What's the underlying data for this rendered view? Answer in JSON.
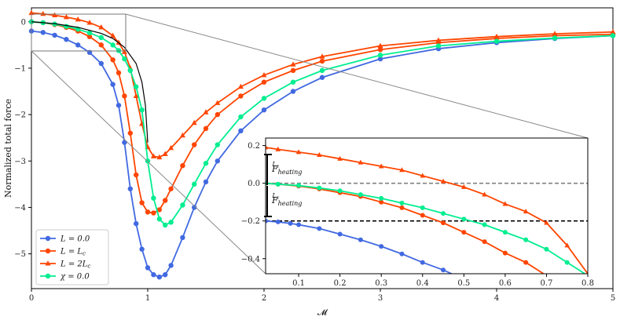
{
  "chart_data": [
    {
      "type": "line",
      "xlabel": "𝓜",
      "ylabel": "Normalized total force",
      "xlim": [
        0,
        5
      ],
      "ylim": [
        -5.75,
        0.3
      ],
      "x_ticks": [
        "0",
        "1",
        "2",
        "3",
        "4",
        "5"
      ],
      "y_ticks": [
        "0",
        "−1",
        "−2",
        "−3",
        "−4",
        "−5"
      ],
      "grid": false,
      "legend_position": "bottom-left",
      "series": [
        {
          "name": "L = 0.0",
          "color": "#4169e1",
          "marker": "circle",
          "x": [
            0,
            0.1,
            0.2,
            0.3,
            0.4,
            0.5,
            0.6,
            0.7,
            0.75,
            0.8,
            0.85,
            0.9,
            0.95,
            1.0,
            1.05,
            1.1,
            1.15,
            1.2,
            1.3,
            1.4,
            1.5,
            1.6,
            1.8,
            2.0,
            2.25,
            2.5,
            3.0,
            3.5,
            4.0,
            4.5,
            5.0
          ],
          "y": [
            -0.2,
            -0.23,
            -0.29,
            -0.38,
            -0.5,
            -0.66,
            -0.9,
            -1.35,
            -1.8,
            -2.6,
            -3.6,
            -4.35,
            -4.9,
            -5.3,
            -5.45,
            -5.5,
            -5.45,
            -5.25,
            -4.65,
            -4.0,
            -3.45,
            -3.0,
            -2.35,
            -1.9,
            -1.5,
            -1.2,
            -0.8,
            -0.58,
            -0.45,
            -0.36,
            -0.3
          ]
        },
        {
          "name": "L = L_c",
          "color": "#ff4500",
          "marker": "circle",
          "x": [
            0,
            0.1,
            0.2,
            0.3,
            0.4,
            0.5,
            0.6,
            0.7,
            0.75,
            0.8,
            0.85,
            0.9,
            0.95,
            1.0,
            1.05,
            1.1,
            1.15,
            1.2,
            1.3,
            1.4,
            1.5,
            1.6,
            1.8,
            2.0,
            2.25,
            2.5,
            3.0,
            3.5,
            4.0,
            4.5,
            5.0
          ],
          "y": [
            0.0,
            -0.02,
            -0.06,
            -0.12,
            -0.2,
            -0.32,
            -0.5,
            -0.82,
            -1.1,
            -1.6,
            -2.4,
            -3.3,
            -3.9,
            -4.1,
            -4.12,
            -4.05,
            -3.85,
            -3.6,
            -3.1,
            -2.65,
            -2.3,
            -2.0,
            -1.6,
            -1.3,
            -1.05,
            -0.85,
            -0.6,
            -0.45,
            -0.36,
            -0.3,
            -0.27
          ]
        },
        {
          "name": "L = 2L_c",
          "color": "#ff4500",
          "marker": "triangle",
          "x": [
            0,
            0.1,
            0.2,
            0.3,
            0.4,
            0.5,
            0.6,
            0.7,
            0.75,
            0.8,
            0.85,
            0.9,
            0.95,
            1.0,
            1.05,
            1.1,
            1.15,
            1.2,
            1.3,
            1.4,
            1.5,
            1.6,
            1.8,
            2.0,
            2.25,
            2.5,
            3.0,
            3.5,
            4.0,
            4.5,
            5.0
          ],
          "y": [
            0.19,
            0.17,
            0.14,
            0.1,
            0.05,
            -0.02,
            -0.12,
            -0.3,
            -0.45,
            -0.65,
            -1.0,
            -1.6,
            -2.2,
            -2.7,
            -2.9,
            -2.92,
            -2.85,
            -2.72,
            -2.45,
            -2.18,
            -1.95,
            -1.75,
            -1.4,
            -1.15,
            -0.92,
            -0.75,
            -0.52,
            -0.4,
            -0.32,
            -0.26,
            -0.22
          ]
        },
        {
          "name": "χ = 0.0",
          "color": "#00ee90",
          "marker": "circle",
          "x": [
            0,
            0.1,
            0.2,
            0.3,
            0.4,
            0.5,
            0.6,
            0.7,
            0.75,
            0.8,
            0.85,
            0.9,
            0.95,
            1.0,
            1.05,
            1.1,
            1.15,
            1.2,
            1.3,
            1.4,
            1.5,
            1.6,
            1.8,
            2.0,
            2.25,
            2.5,
            3.0,
            3.5,
            4.0,
            4.5,
            5.0
          ],
          "y": [
            0.0,
            -0.02,
            -0.05,
            -0.1,
            -0.16,
            -0.24,
            -0.34,
            -0.5,
            -0.62,
            -0.8,
            -1.05,
            -1.4,
            -1.9,
            -3.0,
            -3.8,
            -4.25,
            -4.38,
            -4.32,
            -3.95,
            -3.5,
            -3.05,
            -2.65,
            -2.05,
            -1.65,
            -1.3,
            -1.05,
            -0.72,
            -0.52,
            -0.42,
            -0.35,
            -0.3
          ]
        },
        {
          "name": "",
          "color": "#000000",
          "marker": "none",
          "x": [
            0,
            0.2,
            0.4,
            0.6,
            0.7,
            0.8,
            0.9,
            0.95,
            0.98,
            1.0
          ],
          "y": [
            0.0,
            -0.04,
            -0.12,
            -0.25,
            -0.36,
            -0.55,
            -0.9,
            -1.3,
            -1.8,
            -2.6
          ]
        }
      ]
    },
    {
      "type": "line",
      "xlim": [
        0.02,
        0.8
      ],
      "ylim": [
        -0.48,
        0.24
      ],
      "x_ticks": [
        "0.1",
        "0.2",
        "0.3",
        "0.4",
        "0.5",
        "0.6",
        "0.7",
        "0.8"
      ],
      "y_ticks": [
        "0.2",
        "0.0",
        "−0.2",
        "−0.4"
      ],
      "hlines": [
        {
          "y": 0.0,
          "color": "#808080",
          "style": "dashed"
        },
        {
          "y": -0.2,
          "color": "#000000",
          "style": "dashed"
        }
      ],
      "annotations": [
        {
          "text": "F_heating^(L_c)",
          "position": "upper"
        },
        {
          "text": "F_heating^(L_c)",
          "position": "lower"
        }
      ],
      "series": [
        {
          "name": "L = 0.0",
          "color": "#4169e1",
          "marker": "circle",
          "x": [
            0.02,
            0.05,
            0.08,
            0.1,
            0.15,
            0.2,
            0.25,
            0.3,
            0.35,
            0.4,
            0.45,
            0.48
          ],
          "y": [
            -0.2,
            -0.205,
            -0.213,
            -0.22,
            -0.24,
            -0.27,
            -0.3,
            -0.335,
            -0.375,
            -0.42,
            -0.46,
            -0.49
          ]
        },
        {
          "name": "L = L_c",
          "color": "#ff4500",
          "marker": "circle",
          "x": [
            0.02,
            0.05,
            0.1,
            0.15,
            0.2,
            0.25,
            0.3,
            0.35,
            0.4,
            0.45,
            0.5,
            0.55,
            0.6,
            0.65,
            0.7
          ],
          "y": [
            0.0,
            -0.005,
            -0.015,
            -0.03,
            -0.05,
            -0.07,
            -0.1,
            -0.13,
            -0.17,
            -0.21,
            -0.26,
            -0.31,
            -0.37,
            -0.42,
            -0.49
          ]
        },
        {
          "name": "L = 2L_c",
          "color": "#ff4500",
          "marker": "triangle",
          "x": [
            0.02,
            0.05,
            0.1,
            0.15,
            0.2,
            0.25,
            0.3,
            0.35,
            0.4,
            0.45,
            0.5,
            0.55,
            0.6,
            0.65,
            0.7,
            0.75,
            0.8
          ],
          "y": [
            0.19,
            0.18,
            0.165,
            0.15,
            0.13,
            0.11,
            0.09,
            0.07,
            0.04,
            0.01,
            -0.02,
            -0.06,
            -0.11,
            -0.15,
            -0.21,
            -0.33,
            -0.48
          ]
        },
        {
          "name": "χ = 0.0",
          "color": "#00ee90",
          "marker": "circle",
          "x": [
            0.02,
            0.05,
            0.1,
            0.15,
            0.2,
            0.25,
            0.3,
            0.35,
            0.4,
            0.45,
            0.5,
            0.55,
            0.6,
            0.65,
            0.7,
            0.75,
            0.8
          ],
          "y": [
            0.0,
            -0.005,
            -0.012,
            -0.025,
            -0.04,
            -0.06,
            -0.08,
            -0.105,
            -0.13,
            -0.16,
            -0.19,
            -0.22,
            -0.26,
            -0.3,
            -0.35,
            -0.42,
            -0.49
          ]
        }
      ]
    }
  ],
  "legend": [
    {
      "label": "L = 0.0",
      "color": "#4169e1",
      "marker": "circle"
    },
    {
      "label": "L = L",
      "sub": "c",
      "color": "#ff4500",
      "marker": "circle"
    },
    {
      "label": "L = 2L",
      "sub": "c",
      "color": "#ff4500",
      "marker": "triangle"
    },
    {
      "label": "χ = 0.0",
      "color": "#00ee90",
      "marker": "circle"
    }
  ],
  "annotations": {
    "upper_main": "F",
    "upper_sub": "heating",
    "upper_sup": "L",
    "upper_supsub": "c",
    "lower_main": "F",
    "lower_sub": "heating",
    "lower_sup": "L",
    "lower_supsub": "c"
  }
}
